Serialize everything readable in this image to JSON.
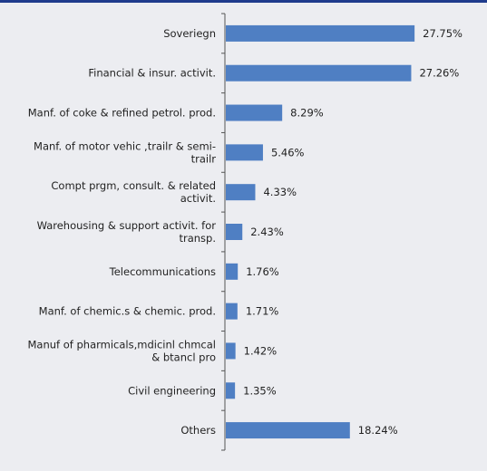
{
  "chart_data": {
    "type": "bar",
    "orientation": "horizontal",
    "categories": [
      "Soveriegn",
      "Financial & insur. activit.",
      "Manf. of coke & refined petrol. prod.",
      "Manf. of motor vehic ,trailr & semi-trailr",
      "Compt prgm, consult. & related activit.",
      "Warehousing & support activit. for transp.",
      "Telecommunications",
      "Manf. of chemic.s & chemic. prod.",
      "Manuf of pharmicals,mdicinl chmcal & btancl pro",
      "Civil engineering",
      "Others"
    ],
    "category_lines": [
      [
        "Soveriegn"
      ],
      [
        "Financial & insur. activit."
      ],
      [
        "Manf. of coke & refined petrol. prod."
      ],
      [
        "Manf. of motor vehic ,trailr & semi-",
        "trailr"
      ],
      [
        "Compt prgm, consult. & related",
        "activit."
      ],
      [
        "Warehousing & support activit. for",
        "transp."
      ],
      [
        "Telecommunications"
      ],
      [
        "Manf. of chemic.s & chemic. prod."
      ],
      [
        "Manuf of pharmicals,mdicinl chmcal",
        "& btancl pro"
      ],
      [
        "Civil engineering"
      ],
      [
        "Others"
      ]
    ],
    "values": [
      27.75,
      27.26,
      8.29,
      5.46,
      4.33,
      2.43,
      1.76,
      1.71,
      1.42,
      1.35,
      18.24
    ],
    "value_labels": [
      "27.75%",
      "27.26%",
      "8.29%",
      "5.46%",
      "4.33%",
      "2.43%",
      "1.76%",
      "1.71%",
      "1.42%",
      "1.35%",
      "18.24%"
    ],
    "xlim": [
      0,
      35
    ],
    "grid": false,
    "legend": "none",
    "title": "",
    "xlabel": "",
    "ylabel": "",
    "colors": {
      "bar": "#4f7fc3",
      "background": "#ecedf1",
      "top_rule": "#1f3b8c"
    }
  }
}
